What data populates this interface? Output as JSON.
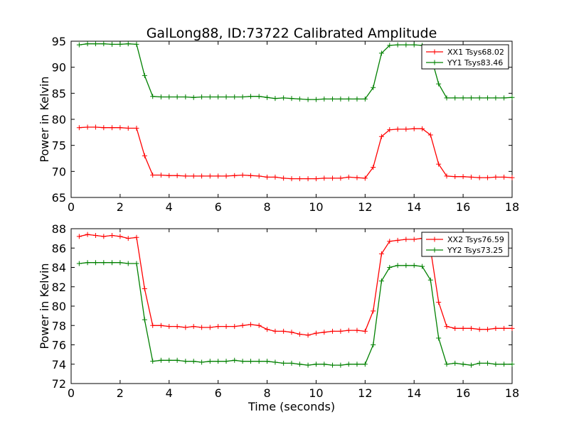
{
  "title": "GalLong88, ID:73722 Calibrated Amplitude",
  "chart_data": [
    {
      "type": "line",
      "title": "GalLong88, ID:73722 Calibrated Amplitude",
      "xlabel": "",
      "ylabel": "Power in Kelvin",
      "xlim": [
        0,
        18
      ],
      "ylim": [
        65,
        95
      ],
      "xticks": [
        "0",
        "2",
        "4",
        "6",
        "8",
        "10",
        "12",
        "14",
        "16",
        "18"
      ],
      "yticks": [
        "65",
        "70",
        "75",
        "80",
        "85",
        "90",
        "95"
      ],
      "legend_position": "top-right",
      "grid": false,
      "x": [
        0.33,
        0.67,
        1.0,
        1.33,
        1.67,
        2.0,
        2.33,
        2.67,
        3.0,
        3.33,
        3.67,
        4.0,
        4.33,
        4.67,
        5.0,
        5.33,
        5.67,
        6.0,
        6.33,
        6.67,
        7.0,
        7.33,
        7.67,
        8.0,
        8.33,
        8.67,
        9.0,
        9.33,
        9.67,
        10.0,
        10.33,
        10.67,
        11.0,
        11.33,
        11.67,
        12.0,
        12.33,
        12.67,
        13.0,
        13.33,
        13.67,
        14.0,
        14.33,
        14.67,
        15.0,
        15.33,
        15.67,
        16.0,
        16.33,
        16.67,
        17.0,
        17.33,
        17.67,
        18.0
      ],
      "series": [
        {
          "name": "XX1 Tsys68.02",
          "color": "#ff0000",
          "values": [
            78.4,
            78.5,
            78.5,
            78.4,
            78.4,
            78.4,
            78.3,
            78.3,
            73.0,
            69.3,
            69.3,
            69.2,
            69.2,
            69.1,
            69.1,
            69.1,
            69.1,
            69.1,
            69.1,
            69.2,
            69.3,
            69.2,
            69.1,
            68.9,
            68.9,
            68.7,
            68.6,
            68.6,
            68.6,
            68.6,
            68.7,
            68.7,
            68.7,
            68.9,
            68.8,
            68.7,
            70.8,
            76.7,
            78.0,
            78.1,
            78.1,
            78.2,
            78.2,
            77.0,
            71.4,
            69.1,
            69.0,
            69.0,
            68.9,
            68.8,
            68.8,
            68.9,
            68.9,
            68.8
          ]
        },
        {
          "name": "YY1 Tsys83.46",
          "color": "#008000",
          "values": [
            94.3,
            94.5,
            94.5,
            94.5,
            94.4,
            94.4,
            94.5,
            94.4,
            88.4,
            84.4,
            84.3,
            84.3,
            84.3,
            84.3,
            84.2,
            84.3,
            84.3,
            84.3,
            84.3,
            84.3,
            84.3,
            84.4,
            84.4,
            84.2,
            84.0,
            84.1,
            84.0,
            83.9,
            83.8,
            83.8,
            83.9,
            83.9,
            83.9,
            83.9,
            83.9,
            83.9,
            86.1,
            92.7,
            94.2,
            94.3,
            94.3,
            94.3,
            94.2,
            92.4,
            86.8,
            84.1,
            84.1,
            84.1,
            84.1,
            84.1,
            84.1,
            84.1,
            84.1,
            84.2
          ]
        }
      ]
    },
    {
      "type": "line",
      "title": "",
      "xlabel": "Time (seconds)",
      "ylabel": "Power in Kelvin",
      "xlim": [
        0,
        18
      ],
      "ylim": [
        72,
        88
      ],
      "xticks": [
        "0",
        "2",
        "4",
        "6",
        "8",
        "10",
        "12",
        "14",
        "16",
        "18"
      ],
      "yticks": [
        "72",
        "74",
        "76",
        "78",
        "80",
        "82",
        "84",
        "86",
        "88"
      ],
      "legend_position": "top-right",
      "grid": false,
      "x": [
        0.33,
        0.67,
        1.0,
        1.33,
        1.67,
        2.0,
        2.33,
        2.67,
        3.0,
        3.33,
        3.67,
        4.0,
        4.33,
        4.67,
        5.0,
        5.33,
        5.67,
        6.0,
        6.33,
        6.67,
        7.0,
        7.33,
        7.67,
        8.0,
        8.33,
        8.67,
        9.0,
        9.33,
        9.67,
        10.0,
        10.33,
        10.67,
        11.0,
        11.33,
        11.67,
        12.0,
        12.33,
        12.67,
        13.0,
        13.33,
        13.67,
        14.0,
        14.33,
        14.67,
        15.0,
        15.33,
        15.67,
        16.0,
        16.33,
        16.67,
        17.0,
        17.33,
        17.67,
        18.0
      ],
      "series": [
        {
          "name": "XX2 Tsys76.59",
          "color": "#ff0000",
          "values": [
            87.2,
            87.4,
            87.3,
            87.2,
            87.3,
            87.2,
            87.0,
            87.1,
            81.8,
            78.0,
            78.0,
            77.9,
            77.9,
            77.8,
            77.9,
            77.8,
            77.8,
            77.9,
            77.9,
            77.9,
            78.0,
            78.1,
            78.0,
            77.6,
            77.4,
            77.4,
            77.3,
            77.1,
            77.0,
            77.2,
            77.3,
            77.4,
            77.4,
            77.5,
            77.5,
            77.4,
            79.5,
            85.4,
            86.7,
            86.8,
            86.9,
            86.9,
            87.0,
            85.9,
            80.4,
            77.9,
            77.7,
            77.7,
            77.7,
            77.6,
            77.6,
            77.7,
            77.7,
            77.7
          ]
        },
        {
          "name": "YY2 Tsys73.25",
          "color": "#008000",
          "values": [
            84.4,
            84.5,
            84.5,
            84.5,
            84.5,
            84.5,
            84.4,
            84.4,
            78.6,
            74.3,
            74.4,
            74.4,
            74.4,
            74.3,
            74.3,
            74.2,
            74.3,
            74.3,
            74.3,
            74.4,
            74.3,
            74.3,
            74.3,
            74.3,
            74.2,
            74.1,
            74.1,
            74.0,
            73.9,
            74.0,
            74.0,
            73.9,
            73.9,
            74.0,
            74.0,
            74.0,
            76.0,
            82.6,
            84.0,
            84.2,
            84.2,
            84.2,
            84.1,
            82.7,
            76.7,
            74.0,
            74.1,
            74.0,
            73.9,
            74.1,
            74.1,
            74.0,
            74.0,
            74.0
          ]
        }
      ]
    }
  ]
}
